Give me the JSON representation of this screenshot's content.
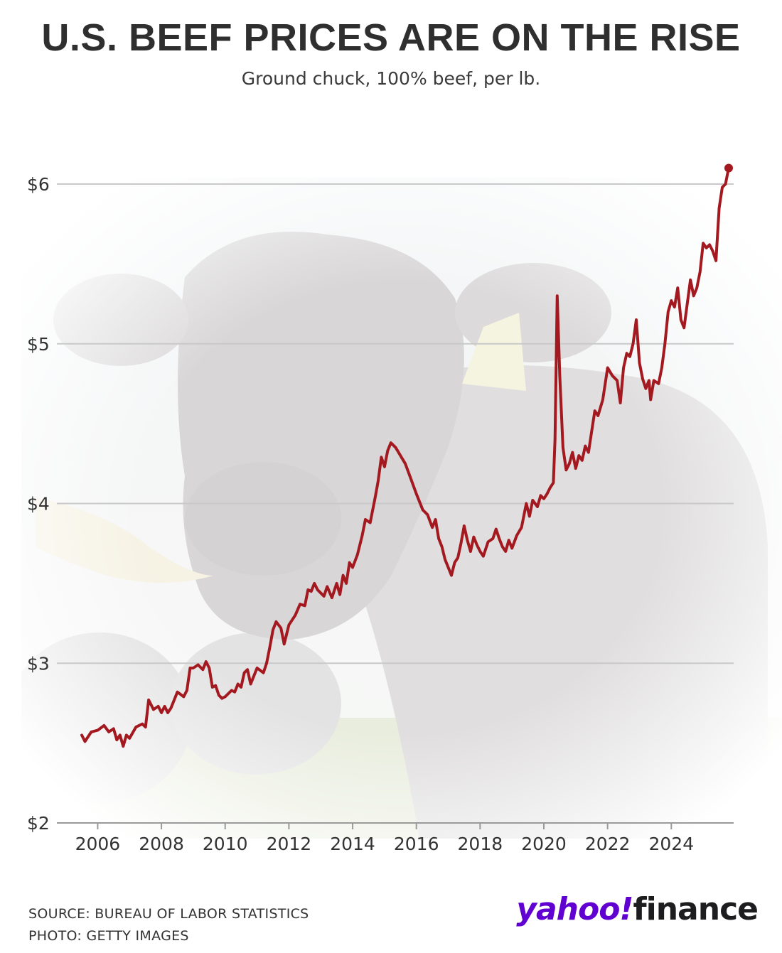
{
  "header": {
    "title": "U.S. BEEF PRICES ARE ON THE RISE",
    "subtitle": "Ground chuck, 100% beef, per lb."
  },
  "footer": {
    "source": "SOURCE: BUREAU OF LABOR STATISTICS",
    "photo_credit": "PHOTO: GETTY IMAGES",
    "logo_yahoo": "yahoo!",
    "logo_finance": "finance"
  },
  "colors": {
    "line": "#a3191f",
    "grid": "#c9c9c9",
    "axis": "#9a9a9a",
    "brand_purple": "#6001d2"
  },
  "chart_data": {
    "type": "line",
    "title": "",
    "xlabel": "",
    "ylabel": "",
    "xlim": [
      2005.2,
      2025.8
    ],
    "ylim": [
      2,
      6.1
    ],
    "x_ticks": [
      2006,
      2008,
      2010,
      2012,
      2014,
      2016,
      2018,
      2020,
      2022,
      2024
    ],
    "x_tick_labels": [
      "2006",
      "2008",
      "2010",
      "2012",
      "2014",
      "2016",
      "2018",
      "2020",
      "2022",
      "2024"
    ],
    "y_ticks": [
      2,
      3,
      4,
      5,
      6
    ],
    "y_tick_labels": [
      "$2",
      "$3",
      "$4",
      "$5",
      "$6"
    ],
    "grid": "horizontal",
    "series": [
      {
        "values": [
          [
            2005.5,
            2.55
          ],
          [
            2005.6,
            2.51
          ],
          [
            2005.8,
            2.57
          ],
          [
            2006.0,
            2.58
          ],
          [
            2006.2,
            2.61
          ],
          [
            2006.35,
            2.57
          ],
          [
            2006.5,
            2.59
          ],
          [
            2006.6,
            2.52
          ],
          [
            2006.7,
            2.55
          ],
          [
            2006.8,
            2.48
          ],
          [
            2006.9,
            2.55
          ],
          [
            2007.0,
            2.53
          ],
          [
            2007.2,
            2.6
          ],
          [
            2007.4,
            2.62
          ],
          [
            2007.5,
            2.6
          ],
          [
            2007.6,
            2.77
          ],
          [
            2007.75,
            2.71
          ],
          [
            2007.9,
            2.73
          ],
          [
            2008.0,
            2.69
          ],
          [
            2008.1,
            2.73
          ],
          [
            2008.2,
            2.69
          ],
          [
            2008.3,
            2.72
          ],
          [
            2008.5,
            2.82
          ],
          [
            2008.7,
            2.79
          ],
          [
            2008.8,
            2.83
          ],
          [
            2008.9,
            2.97
          ],
          [
            2009.0,
            2.97
          ],
          [
            2009.15,
            2.99
          ],
          [
            2009.3,
            2.96
          ],
          [
            2009.4,
            3.01
          ],
          [
            2009.5,
            2.97
          ],
          [
            2009.6,
            2.85
          ],
          [
            2009.7,
            2.86
          ],
          [
            2009.8,
            2.8
          ],
          [
            2009.9,
            2.78
          ],
          [
            2010.0,
            2.79
          ],
          [
            2010.2,
            2.83
          ],
          [
            2010.3,
            2.82
          ],
          [
            2010.4,
            2.87
          ],
          [
            2010.5,
            2.85
          ],
          [
            2010.6,
            2.94
          ],
          [
            2010.7,
            2.96
          ],
          [
            2010.8,
            2.87
          ],
          [
            2011.0,
            2.97
          ],
          [
            2011.2,
            2.94
          ],
          [
            2011.3,
            3.0
          ],
          [
            2011.4,
            3.1
          ],
          [
            2011.5,
            3.21
          ],
          [
            2011.6,
            3.26
          ],
          [
            2011.75,
            3.22
          ],
          [
            2011.85,
            3.12
          ],
          [
            2012.0,
            3.24
          ],
          [
            2012.2,
            3.3
          ],
          [
            2012.35,
            3.37
          ],
          [
            2012.5,
            3.36
          ],
          [
            2012.6,
            3.46
          ],
          [
            2012.7,
            3.45
          ],
          [
            2012.8,
            3.5
          ],
          [
            2012.9,
            3.46
          ],
          [
            2013.0,
            3.44
          ],
          [
            2013.1,
            3.42
          ],
          [
            2013.2,
            3.48
          ],
          [
            2013.35,
            3.41
          ],
          [
            2013.5,
            3.5
          ],
          [
            2013.6,
            3.43
          ],
          [
            2013.7,
            3.55
          ],
          [
            2013.8,
            3.5
          ],
          [
            2013.9,
            3.63
          ],
          [
            2014.0,
            3.6
          ],
          [
            2014.15,
            3.68
          ],
          [
            2014.3,
            3.8
          ],
          [
            2014.4,
            3.9
          ],
          [
            2014.55,
            3.88
          ],
          [
            2014.7,
            4.03
          ],
          [
            2014.8,
            4.14
          ],
          [
            2014.9,
            4.29
          ],
          [
            2015.0,
            4.23
          ],
          [
            2015.1,
            4.33
          ],
          [
            2015.2,
            4.38
          ],
          [
            2015.35,
            4.35
          ],
          [
            2015.5,
            4.3
          ],
          [
            2015.65,
            4.25
          ],
          [
            2015.8,
            4.17
          ],
          [
            2016.0,
            4.06
          ],
          [
            2016.2,
            3.96
          ],
          [
            2016.35,
            3.93
          ],
          [
            2016.5,
            3.85
          ],
          [
            2016.6,
            3.9
          ],
          [
            2016.7,
            3.78
          ],
          [
            2016.8,
            3.73
          ],
          [
            2016.9,
            3.65
          ],
          [
            2017.0,
            3.6
          ],
          [
            2017.1,
            3.55
          ],
          [
            2017.2,
            3.63
          ],
          [
            2017.3,
            3.66
          ],
          [
            2017.4,
            3.75
          ],
          [
            2017.5,
            3.86
          ],
          [
            2017.6,
            3.77
          ],
          [
            2017.7,
            3.7
          ],
          [
            2017.8,
            3.79
          ],
          [
            2017.9,
            3.74
          ],
          [
            2018.0,
            3.7
          ],
          [
            2018.1,
            3.67
          ],
          [
            2018.25,
            3.76
          ],
          [
            2018.4,
            3.78
          ],
          [
            2018.5,
            3.84
          ],
          [
            2018.6,
            3.78
          ],
          [
            2018.7,
            3.73
          ],
          [
            2018.8,
            3.7
          ],
          [
            2018.9,
            3.77
          ],
          [
            2019.0,
            3.72
          ],
          [
            2019.15,
            3.8
          ],
          [
            2019.3,
            3.85
          ],
          [
            2019.45,
            4.0
          ],
          [
            2019.55,
            3.92
          ],
          [
            2019.65,
            4.02
          ],
          [
            2019.8,
            3.98
          ],
          [
            2019.9,
            4.05
          ],
          [
            2020.0,
            4.03
          ],
          [
            2020.1,
            4.06
          ],
          [
            2020.2,
            4.1
          ],
          [
            2020.3,
            4.13
          ],
          [
            2020.35,
            4.4
          ],
          [
            2020.42,
            5.3
          ],
          [
            2020.5,
            4.8
          ],
          [
            2020.6,
            4.35
          ],
          [
            2020.7,
            4.21
          ],
          [
            2020.8,
            4.25
          ],
          [
            2020.9,
            4.32
          ],
          [
            2021.0,
            4.22
          ],
          [
            2021.1,
            4.3
          ],
          [
            2021.2,
            4.27
          ],
          [
            2021.3,
            4.36
          ],
          [
            2021.4,
            4.32
          ],
          [
            2021.5,
            4.45
          ],
          [
            2021.6,
            4.58
          ],
          [
            2021.7,
            4.55
          ],
          [
            2021.85,
            4.65
          ],
          [
            2022.0,
            4.85
          ],
          [
            2022.15,
            4.8
          ],
          [
            2022.3,
            4.77
          ],
          [
            2022.4,
            4.63
          ],
          [
            2022.5,
            4.85
          ],
          [
            2022.6,
            4.94
          ],
          [
            2022.7,
            4.92
          ],
          [
            2022.8,
            5.0
          ],
          [
            2022.9,
            5.15
          ],
          [
            2023.0,
            4.88
          ],
          [
            2023.1,
            4.78
          ],
          [
            2023.2,
            4.72
          ],
          [
            2023.3,
            4.77
          ],
          [
            2023.35,
            4.65
          ],
          [
            2023.45,
            4.77
          ],
          [
            2023.6,
            4.75
          ],
          [
            2023.7,
            4.85
          ],
          [
            2023.8,
            5.0
          ],
          [
            2023.9,
            5.2
          ],
          [
            2024.0,
            5.27
          ],
          [
            2024.1,
            5.23
          ],
          [
            2024.2,
            5.35
          ],
          [
            2024.3,
            5.15
          ],
          [
            2024.4,
            5.1
          ],
          [
            2024.5,
            5.25
          ],
          [
            2024.6,
            5.4
          ],
          [
            2024.7,
            5.3
          ],
          [
            2024.8,
            5.35
          ],
          [
            2024.9,
            5.45
          ],
          [
            2025.0,
            5.63
          ],
          [
            2025.1,
            5.6
          ],
          [
            2025.2,
            5.62
          ],
          [
            2025.3,
            5.58
          ],
          [
            2025.4,
            5.52
          ],
          [
            2025.5,
            5.85
          ],
          [
            2025.6,
            5.98
          ],
          [
            2025.7,
            6.0
          ],
          [
            2025.8,
            6.1
          ]
        ]
      }
    ]
  }
}
